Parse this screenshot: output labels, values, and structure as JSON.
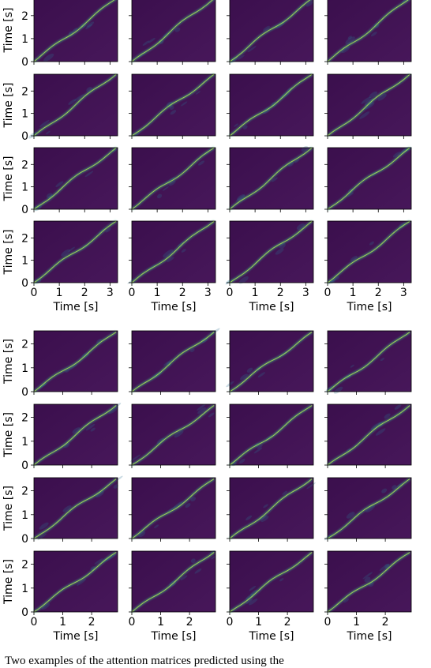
{
  "figure": {
    "caption": "Two examples of the attention matrices predicted using the",
    "colors": {
      "background": "#42134f",
      "background_dark": "#3b0f4d",
      "diagonal": "#3cc18a",
      "diagonal_bright": "#b7e04a",
      "frame": "#000000"
    }
  },
  "chart_data": [
    {
      "type": "heatmap",
      "title": "",
      "rows": 4,
      "cols": 4,
      "xlabel": "Time [s]",
      "ylabel": "Time [s]",
      "xlim": [
        0,
        3.3
      ],
      "ylim": [
        0,
        2.75
      ],
      "xticks": [
        0,
        1,
        2,
        3
      ],
      "yticks": [
        0,
        1,
        2
      ],
      "colormap": "viridis",
      "description_of_values": "near-diagonal attention alignment",
      "diagonal_end": [
        3.25,
        2.75
      ]
    },
    {
      "type": "heatmap",
      "title": "",
      "rows": 4,
      "cols": 4,
      "xlabel": "Time [s]",
      "ylabel": "Time [s]",
      "xlim": [
        0,
        2.9
      ],
      "ylim": [
        0,
        2.55
      ],
      "xticks": [
        0,
        1,
        2
      ],
      "yticks": [
        0,
        1,
        2
      ],
      "colormap": "viridis",
      "diagonal_end": [
        2.85,
        2.5
      ]
    }
  ]
}
